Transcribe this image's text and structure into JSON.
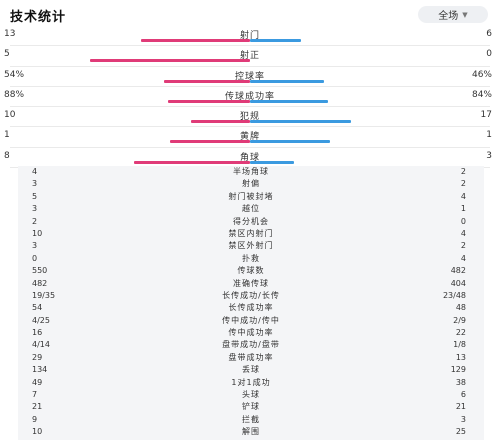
{
  "header": {
    "title": "技术统计",
    "period": "全场",
    "period_icon": "chevron-down-icon"
  },
  "colors": {
    "home": "#e03b78",
    "away": "#3b9ae0"
  },
  "bar_stats": [
    {
      "name": "射门",
      "home": "13",
      "away": "6",
      "home_n": 13,
      "away_n": 6
    },
    {
      "name": "射正",
      "home": "5",
      "away": "0",
      "home_n": 5,
      "away_n": 0
    },
    {
      "name": "控球率",
      "home": "54%",
      "away": "46%",
      "home_n": 54,
      "away_n": 46
    },
    {
      "name": "传球成功率",
      "home": "88%",
      "away": "84%",
      "home_n": 88,
      "away_n": 84
    },
    {
      "name": "犯规",
      "home": "10",
      "away": "17",
      "home_n": 10,
      "away_n": 17
    },
    {
      "name": "黄牌",
      "home": "1",
      "away": "1",
      "home_n": 1,
      "away_n": 1
    },
    {
      "name": "角球",
      "home": "8",
      "away": "3",
      "home_n": 8,
      "away_n": 3
    }
  ],
  "list_stats": [
    {
      "name": "半场角球",
      "home": "4",
      "away": "2"
    },
    {
      "name": "射偏",
      "home": "3",
      "away": "2"
    },
    {
      "name": "射门被封堵",
      "home": "5",
      "away": "4"
    },
    {
      "name": "越位",
      "home": "3",
      "away": "1"
    },
    {
      "name": "得分机会",
      "home": "2",
      "away": "0"
    },
    {
      "name": "禁区内射门",
      "home": "10",
      "away": "4"
    },
    {
      "name": "禁区外射门",
      "home": "3",
      "away": "2"
    },
    {
      "name": "扑救",
      "home": "0",
      "away": "4"
    },
    {
      "name": "传球数",
      "home": "550",
      "away": "482"
    },
    {
      "name": "准确传球",
      "home": "482",
      "away": "404"
    },
    {
      "name": "长传成功/长传",
      "home": "19/35",
      "away": "23/48"
    },
    {
      "name": "长传成功率",
      "home": "54",
      "away": "48"
    },
    {
      "name": "传中成功/传中",
      "home": "4/25",
      "away": "2/9"
    },
    {
      "name": "传中成功率",
      "home": "16",
      "away": "22"
    },
    {
      "name": "盘带成功/盘带",
      "home": "4/14",
      "away": "1/8"
    },
    {
      "name": "盘带成功率",
      "home": "29",
      "away": "13"
    },
    {
      "name": "丢球",
      "home": "134",
      "away": "129"
    },
    {
      "name": "1对1成功",
      "home": "49",
      "away": "38"
    },
    {
      "name": "头球",
      "home": "7",
      "away": "6"
    },
    {
      "name": "铲球",
      "home": "21",
      "away": "21"
    },
    {
      "name": "拦截",
      "home": "9",
      "away": "3"
    },
    {
      "name": "解围",
      "home": "10",
      "away": "25"
    }
  ]
}
